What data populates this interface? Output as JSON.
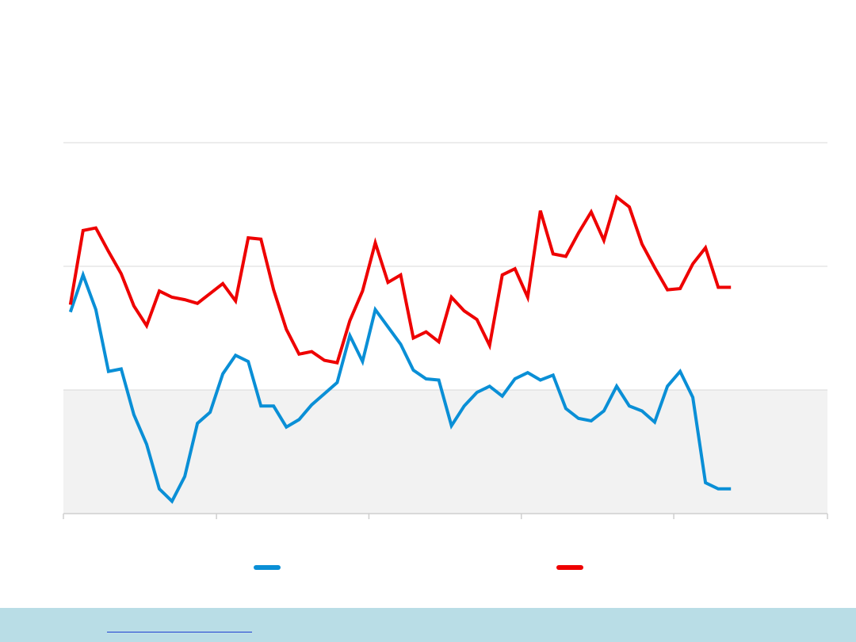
{
  "colors": {
    "series_a": "#0a8fd6",
    "series_b": "#ee0000",
    "band_fill": "#f2f2f2",
    "gridline": "#d9d9d9",
    "axis": "#cfcfcf",
    "footer_bg": "#b9dde6",
    "footer_link": "#1f3fd1"
  },
  "footer": {
    "link_text": ""
  },
  "chart_data": {
    "type": "line",
    "title": "",
    "xlabel": "",
    "ylabel": "",
    "grid": true,
    "legend_position": "bottom",
    "x": [
      0,
      1,
      2,
      3,
      4,
      5,
      6,
      7,
      8,
      9,
      10,
      11,
      12,
      13,
      14,
      15,
      16,
      17,
      18,
      19,
      20,
      21,
      22,
      23,
      24,
      25,
      26,
      27,
      28,
      29,
      30,
      31,
      32,
      33,
      34,
      35,
      36,
      37,
      38,
      39,
      40,
      41,
      42,
      43,
      44,
      45,
      46,
      47,
      48,
      49,
      50,
      51,
      52
    ],
    "xlim": [
      -0.55,
      59.6
    ],
    "ylim": [
      0,
      3
    ],
    "y_gridlines": [
      1,
      2,
      3
    ],
    "shaded_band": [
      0,
      1
    ],
    "x_ticks": [
      -0.55,
      11.5,
      23.5,
      35.5,
      47.5,
      59.6
    ],
    "series": [
      {
        "name": "",
        "color_key": "series_a",
        "values": [
          1.63,
          1.93,
          1.65,
          1.15,
          1.17,
          0.8,
          0.56,
          0.2,
          0.1,
          0.3,
          0.73,
          0.82,
          1.13,
          1.28,
          1.23,
          0.87,
          0.87,
          0.7,
          0.76,
          0.88,
          0.97,
          1.06,
          1.44,
          1.23,
          1.65,
          1.51,
          1.37,
          1.16,
          1.09,
          1.08,
          0.71,
          0.87,
          0.98,
          1.03,
          0.95,
          1.09,
          1.14,
          1.08,
          1.12,
          0.85,
          0.77,
          0.75,
          0.83,
          1.03,
          0.87,
          0.83,
          0.74,
          1.03,
          1.15,
          0.94,
          0.25,
          0.2,
          0.2
        ]
      },
      {
        "name": "",
        "color_key": "series_b",
        "values": [
          1.69,
          2.29,
          2.31,
          2.12,
          1.94,
          1.68,
          1.52,
          1.8,
          1.75,
          1.73,
          1.7,
          1.78,
          1.86,
          1.72,
          2.23,
          2.22,
          1.81,
          1.49,
          1.29,
          1.31,
          1.24,
          1.22,
          1.56,
          1.8,
          2.19,
          1.87,
          1.93,
          1.42,
          1.47,
          1.39,
          1.75,
          1.64,
          1.57,
          1.36,
          1.93,
          1.98,
          1.75,
          2.45,
          2.1,
          2.08,
          2.27,
          2.44,
          2.21,
          2.56,
          2.48,
          2.18,
          1.99,
          1.81,
          1.82,
          2.02,
          2.15,
          1.83,
          1.83
        ]
      }
    ]
  }
}
